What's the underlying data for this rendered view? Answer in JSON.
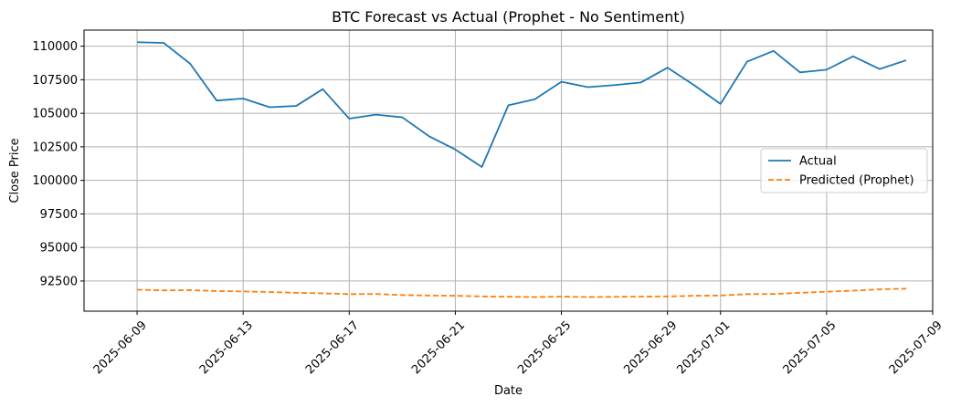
{
  "chart_data": {
    "type": "line",
    "title": "BTC Forecast vs Actual (Prophet - No Sentiment)",
    "xlabel": "Date",
    "ylabel": "Close Price",
    "xlim": [
      "2025-06-07",
      "2025-07-09"
    ],
    "ylim": [
      90250,
      111200
    ],
    "x_ticks": [
      "2025-06-09",
      "2025-06-13",
      "2025-06-17",
      "2025-06-21",
      "2025-06-25",
      "2025-06-29",
      "2025-07-01",
      "2025-07-05",
      "2025-07-09"
    ],
    "y_ticks": [
      92500,
      95000,
      97500,
      100000,
      102500,
      105000,
      107500,
      110000
    ],
    "grid": true,
    "legend_position": "center-right",
    "series": [
      {
        "name": "Actual",
        "color": "#1f77b4",
        "style": "solid",
        "x": [
          "2025-06-09",
          "2025-06-10",
          "2025-06-11",
          "2025-06-12",
          "2025-06-13",
          "2025-06-14",
          "2025-06-15",
          "2025-06-16",
          "2025-06-17",
          "2025-06-18",
          "2025-06-19",
          "2025-06-20",
          "2025-06-21",
          "2025-06-22",
          "2025-06-23",
          "2025-06-24",
          "2025-06-25",
          "2025-06-26",
          "2025-06-27",
          "2025-06-28",
          "2025-06-29",
          "2025-06-30",
          "2025-07-01",
          "2025-07-02",
          "2025-07-03",
          "2025-07-04",
          "2025-07-05",
          "2025-07-06",
          "2025-07-07",
          "2025-07-08"
        ],
        "values": [
          110300,
          110250,
          108700,
          105950,
          106100,
          105450,
          105550,
          106800,
          104600,
          104900,
          104700,
          103300,
          102300,
          101000,
          105600,
          106050,
          107350,
          106950,
          107100,
          107300,
          108400,
          107100,
          105700,
          108850,
          109650,
          108050,
          108250,
          109250,
          108300,
          108950
        ]
      },
      {
        "name": "Predicted (Prophet)",
        "color": "#ff7f0e",
        "style": "dashed",
        "x": [
          "2025-06-09",
          "2025-06-10",
          "2025-06-11",
          "2025-06-12",
          "2025-06-13",
          "2025-06-14",
          "2025-06-15",
          "2025-06-16",
          "2025-06-17",
          "2025-06-18",
          "2025-06-19",
          "2025-06-20",
          "2025-06-21",
          "2025-06-22",
          "2025-06-23",
          "2025-06-24",
          "2025-06-25",
          "2025-06-26",
          "2025-06-27",
          "2025-06-28",
          "2025-06-29",
          "2025-06-30",
          "2025-07-01",
          "2025-07-02",
          "2025-07-03",
          "2025-07-04",
          "2025-07-05",
          "2025-07-06",
          "2025-07-07",
          "2025-07-08"
        ],
        "values": [
          91850,
          91800,
          91820,
          91750,
          91720,
          91680,
          91620,
          91580,
          91520,
          91530,
          91450,
          91420,
          91400,
          91350,
          91330,
          91300,
          91340,
          91300,
          91320,
          91340,
          91350,
          91400,
          91420,
          91520,
          91530,
          91620,
          91700,
          91780,
          91880,
          91930
        ]
      }
    ]
  }
}
